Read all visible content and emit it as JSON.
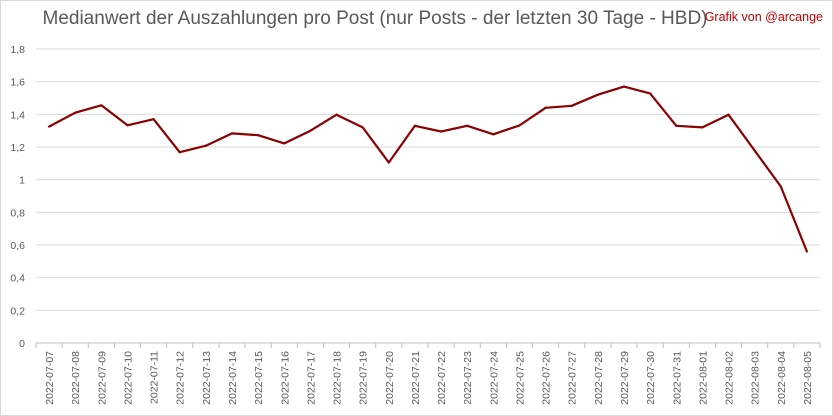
{
  "chart_data": {
    "type": "line",
    "title": "Medianwert der Auszahlungen pro Post (nur Posts - der letzten 30 Tage - HBD)",
    "credit": "Grafik von @arcange",
    "xlabel": "",
    "ylabel": "",
    "ylim": [
      0,
      1.8
    ],
    "yticks": [
      "0",
      "0,2",
      "0,4",
      "0,6",
      "0,8",
      "1",
      "1,2",
      "1,4",
      "1,6",
      "1,8"
    ],
    "categories": [
      "2022-07-07",
      "2022-07-08",
      "2022-07-09",
      "2022-07-10",
      "2022-07-11",
      "2022-07-12",
      "2022-07-13",
      "2022-07-14",
      "2022-07-15",
      "2022-07-16",
      "2022-07-17",
      "2022-07-18",
      "2022-07-19",
      "2022-07-20",
      "2022-07-21",
      "2022-07-22",
      "2022-07-23",
      "2022-07-24",
      "2022-07-25",
      "2022-07-26",
      "2022-07-27",
      "2022-07-28",
      "2022-07-29",
      "2022-07-30",
      "2022-07-31",
      "2022-08-01",
      "2022-08-02",
      "2022-08-03",
      "2022-08-04",
      "2022-08-05"
    ],
    "values": [
      1.325,
      1.41,
      1.455,
      1.333,
      1.37,
      1.168,
      1.208,
      1.283,
      1.272,
      1.222,
      1.3,
      1.398,
      1.32,
      1.105,
      1.33,
      1.295,
      1.33,
      1.278,
      1.332,
      1.44,
      1.452,
      1.52,
      1.57,
      1.528,
      1.33,
      1.32,
      1.398,
      1.178,
      0.958,
      0.56
    ],
    "grid": true,
    "legend": "none",
    "line_color": "#8b0000"
  }
}
